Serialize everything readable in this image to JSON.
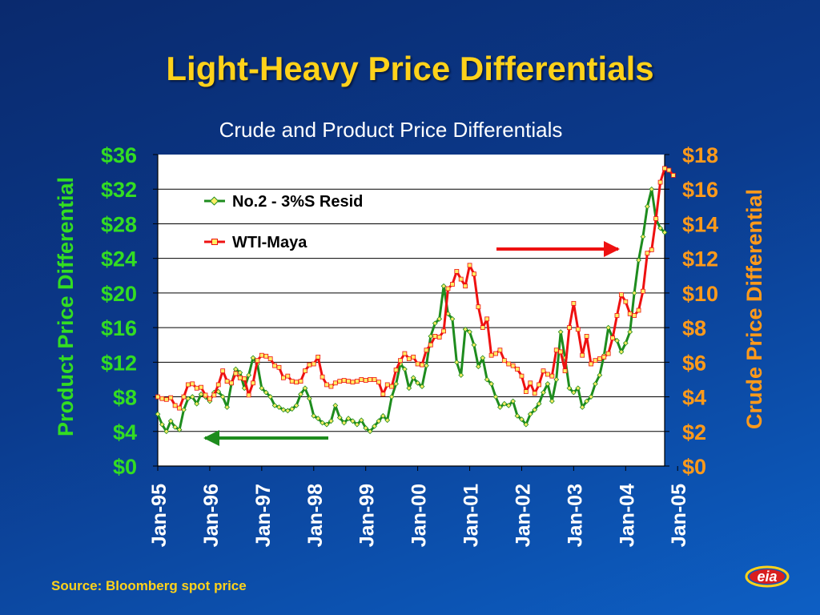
{
  "slide": {
    "title": "Light-Heavy Price Differentials",
    "source": "Source: Bloomberg spot price",
    "logo_text": "eia"
  },
  "colors": {
    "title": "#ffd21a",
    "left_axis": "#33dd22",
    "right_axis": "#ff9a1a",
    "series_resid": "#1e8c1e",
    "series_wti": "#ee1111",
    "marker_fill": "#ffee66",
    "arrow_left": "#1e8c1e",
    "arrow_right": "#ee1111"
  },
  "chart_data": {
    "type": "line",
    "title": "Crude and Product  Price Differentials",
    "ylabel_left": "Product Price Differential",
    "ylabel_right": "Crude Price Differential",
    "ylim_left": [
      0,
      36
    ],
    "ylim_right": [
      0,
      18
    ],
    "yticks_left": [
      "$0",
      "$4",
      "$8",
      "$12",
      "$16",
      "$20",
      "$24",
      "$28",
      "$32",
      "$36"
    ],
    "yticks_right": [
      "$0",
      "$2",
      "$4",
      "$6",
      "$8",
      "$10",
      "$12",
      "$14",
      "$16",
      "$18"
    ],
    "xticks": [
      "Jan-95",
      "Jan-96",
      "Jan-97",
      "Jan-98",
      "Jan-99",
      "Jan-00",
      "Jan-01",
      "Jan-02",
      "Jan-03",
      "Jan-04",
      "Jan-05"
    ],
    "x_start": "Jan-95",
    "frequency": "monthly",
    "grid": "horizontal",
    "legend_position": "top-left",
    "series": [
      {
        "name": "No.2 - 3%S Resid",
        "axis": "left",
        "values": [
          6.0,
          4.8,
          4.0,
          5.2,
          4.5,
          4.2,
          6.5,
          7.8,
          8.0,
          7.2,
          8.3,
          8.0,
          7.5,
          8.5,
          8.6,
          8.0,
          6.8,
          9.5,
          11.2,
          10.8,
          9.0,
          10.5,
          12.5,
          11.8,
          9.0,
          8.5,
          8.0,
          7.0,
          6.8,
          6.5,
          6.4,
          6.6,
          7.0,
          8.3,
          9.0,
          7.8,
          5.8,
          5.5,
          5.0,
          4.8,
          5.2,
          7.0,
          5.6,
          5.0,
          5.5,
          5.2,
          4.8,
          5.3,
          4.4,
          4.0,
          4.6,
          5.2,
          5.8,
          5.3,
          8.0,
          9.5,
          11.8,
          11.2,
          9.0,
          10.2,
          9.6,
          9.2,
          11.6,
          15.0,
          16.5,
          17.0,
          20.8,
          17.6,
          17.0,
          12.0,
          10.5,
          15.8,
          15.5,
          14.0,
          11.5,
          12.5,
          10.0,
          9.5,
          8.0,
          6.8,
          7.2,
          7.0,
          7.5,
          5.8,
          5.4,
          4.8,
          6.0,
          6.5,
          7.2,
          8.5,
          9.5,
          7.5,
          10.0,
          15.5,
          12.5,
          9.0,
          8.5,
          9.0,
          6.8,
          7.5,
          8.0,
          9.5,
          10.5,
          12.8,
          16.0,
          14.8,
          14.5,
          13.2,
          14.2,
          15.5,
          20.0,
          23.8,
          26.5,
          30.0,
          32.0,
          28.5,
          27.5,
          27.0
        ]
      },
      {
        "name": "WTI-Maya",
        "axis": "right",
        "values": [
          4.0,
          3.9,
          3.85,
          3.95,
          3.5,
          3.35,
          4.0,
          4.7,
          4.75,
          4.5,
          4.55,
          4.1,
          3.9,
          4.1,
          4.7,
          5.5,
          4.9,
          4.8,
          5.35,
          5.1,
          5.05,
          4.1,
          4.8,
          6.1,
          6.4,
          6.35,
          6.2,
          5.8,
          5.7,
          5.1,
          5.2,
          4.9,
          4.85,
          4.9,
          5.5,
          5.85,
          5.9,
          6.3,
          5.15,
          4.7,
          4.6,
          4.8,
          4.9,
          4.95,
          4.9,
          4.85,
          4.9,
          5.0,
          4.95,
          5.0,
          5.0,
          4.85,
          4.15,
          4.7,
          4.6,
          5.55,
          6.1,
          6.5,
          6.2,
          6.3,
          5.9,
          5.85,
          6.7,
          7.0,
          7.5,
          7.45,
          7.8,
          10.25,
          10.5,
          11.25,
          10.8,
          10.4,
          11.6,
          11.1,
          9.2,
          8.0,
          8.5,
          6.4,
          6.5,
          6.7,
          6.1,
          5.9,
          5.8,
          5.6,
          5.2,
          4.3,
          4.8,
          4.2,
          4.7,
          5.5,
          5.3,
          5.2,
          6.7,
          6.6,
          5.5,
          8.0,
          9.4,
          7.9,
          6.4,
          7.5,
          5.9,
          6.1,
          6.2,
          6.3,
          6.5,
          7.4,
          8.7,
          9.9,
          9.5,
          8.8,
          8.7,
          9.0,
          10.1,
          12.3,
          12.5,
          14.3,
          16.4,
          17.2,
          17.1,
          16.8
        ]
      }
    ]
  }
}
